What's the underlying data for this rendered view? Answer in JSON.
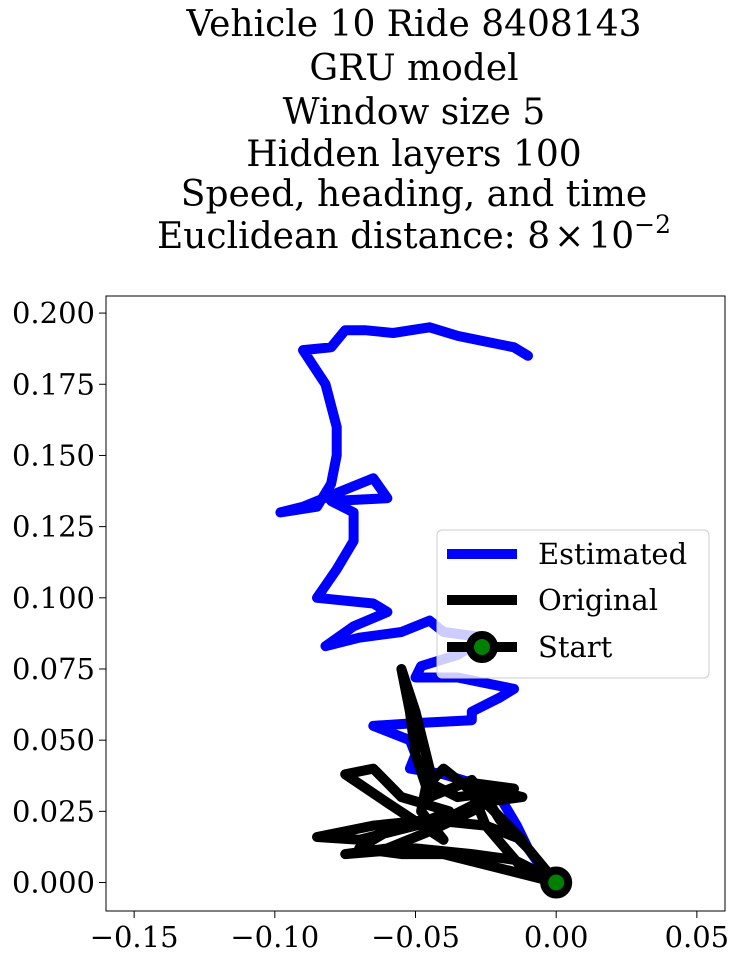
{
  "chart_data": {
    "type": "line",
    "title_lines": [
      "Vehicle 10 Ride 8408143",
      "GRU model",
      "Window size 5",
      "Hidden layers 100",
      "Speed, heading, and time"
    ],
    "title_last_prefix": "Euclidean distance: ",
    "title_last_math": {
      "mantissa": "8",
      "times": "×",
      "base": "10",
      "exponent": "−2"
    },
    "xlim": [
      -0.16,
      0.06
    ],
    "ylim": [
      -0.01,
      0.206
    ],
    "x_ticks": [
      -0.15,
      -0.1,
      -0.05,
      0.0,
      0.05
    ],
    "x_tick_labels": [
      "−0.15",
      "−0.10",
      "−0.05",
      "0.00",
      "0.05"
    ],
    "y_ticks": [
      0.0,
      0.025,
      0.05,
      0.075,
      0.1,
      0.125,
      0.15,
      0.175,
      0.2
    ],
    "y_tick_labels": [
      "0.000",
      "0.025",
      "0.050",
      "0.075",
      "0.100",
      "0.125",
      "0.150",
      "0.175",
      "0.200"
    ],
    "legend_position": "center-right",
    "series": [
      {
        "name": "Estimated",
        "color": "#0000ff",
        "points": [
          [
            0.0,
            0.0
          ],
          [
            -0.005,
            0.005
          ],
          [
            -0.01,
            0.012
          ],
          [
            -0.014,
            0.02
          ],
          [
            -0.02,
            0.03
          ],
          [
            -0.03,
            0.035
          ],
          [
            -0.04,
            0.038
          ],
          [
            -0.052,
            0.04
          ],
          [
            -0.05,
            0.045
          ],
          [
            -0.052,
            0.05
          ],
          [
            -0.065,
            0.055
          ],
          [
            -0.05,
            0.056
          ],
          [
            -0.03,
            0.057
          ],
          [
            -0.03,
            0.06
          ],
          [
            -0.02,
            0.065
          ],
          [
            -0.015,
            0.068
          ],
          [
            -0.035,
            0.072
          ],
          [
            -0.05,
            0.072
          ],
          [
            -0.048,
            0.076
          ],
          [
            -0.035,
            0.08
          ],
          [
            -0.025,
            0.086
          ],
          [
            -0.04,
            0.088
          ],
          [
            -0.045,
            0.092
          ],
          [
            -0.055,
            0.088
          ],
          [
            -0.07,
            0.086
          ],
          [
            -0.082,
            0.083
          ],
          [
            -0.072,
            0.09
          ],
          [
            -0.06,
            0.095
          ],
          [
            -0.065,
            0.098
          ],
          [
            -0.075,
            0.099
          ],
          [
            -0.085,
            0.1
          ],
          [
            -0.078,
            0.11
          ],
          [
            -0.072,
            0.12
          ],
          [
            -0.072,
            0.13
          ],
          [
            -0.08,
            0.134
          ],
          [
            -0.06,
            0.135
          ],
          [
            -0.065,
            0.142
          ],
          [
            -0.075,
            0.138
          ],
          [
            -0.09,
            0.132
          ],
          [
            -0.098,
            0.13
          ],
          [
            -0.085,
            0.132
          ],
          [
            -0.08,
            0.14
          ],
          [
            -0.078,
            0.15
          ],
          [
            -0.078,
            0.16
          ],
          [
            -0.082,
            0.175
          ],
          [
            -0.09,
            0.187
          ],
          [
            -0.08,
            0.188
          ],
          [
            -0.075,
            0.194
          ],
          [
            -0.068,
            0.194
          ],
          [
            -0.058,
            0.193
          ],
          [
            -0.045,
            0.195
          ],
          [
            -0.035,
            0.192
          ],
          [
            -0.025,
            0.19
          ],
          [
            -0.015,
            0.188
          ],
          [
            -0.01,
            0.185
          ]
        ]
      },
      {
        "name": "Original",
        "color": "#000000",
        "points": [
          [
            0.0,
            0.0
          ],
          [
            -0.01,
            0.012
          ],
          [
            -0.02,
            0.022
          ],
          [
            -0.025,
            0.03
          ],
          [
            -0.03,
            0.036
          ],
          [
            -0.045,
            0.03
          ],
          [
            -0.05,
            0.045
          ],
          [
            -0.052,
            0.06
          ],
          [
            -0.055,
            0.075
          ],
          [
            -0.05,
            0.06
          ],
          [
            -0.045,
            0.04
          ],
          [
            -0.048,
            0.025
          ],
          [
            -0.04,
            0.015
          ],
          [
            -0.06,
            0.028
          ],
          [
            -0.075,
            0.038
          ],
          [
            -0.065,
            0.04
          ],
          [
            -0.055,
            0.03
          ],
          [
            -0.038,
            0.025
          ],
          [
            -0.05,
            0.02
          ],
          [
            -0.07,
            0.015
          ],
          [
            -0.085,
            0.016
          ],
          [
            -0.065,
            0.02
          ],
          [
            -0.045,
            0.022
          ],
          [
            -0.025,
            0.02
          ],
          [
            -0.012,
            0.015
          ],
          [
            -0.025,
            0.028
          ],
          [
            -0.03,
            0.035
          ],
          [
            -0.015,
            0.033
          ],
          [
            -0.03,
            0.025
          ],
          [
            -0.045,
            0.018
          ],
          [
            -0.06,
            0.012
          ],
          [
            -0.075,
            0.01
          ],
          [
            -0.05,
            0.012
          ],
          [
            -0.03,
            0.01
          ],
          [
            -0.015,
            0.008
          ],
          [
            -0.005,
            0.003
          ],
          [
            0.0,
            0.0
          ],
          [
            -0.02,
            0.005
          ],
          [
            -0.04,
            0.01
          ],
          [
            -0.055,
            0.01
          ],
          [
            -0.07,
            0.012
          ],
          [
            -0.06,
            0.018
          ],
          [
            -0.04,
            0.022
          ],
          [
            -0.028,
            0.028
          ],
          [
            -0.012,
            0.03
          ],
          [
            -0.02,
            0.032
          ],
          [
            -0.035,
            0.03
          ],
          [
            -0.045,
            0.035
          ],
          [
            -0.04,
            0.04
          ],
          [
            -0.03,
            0.032
          ],
          [
            -0.025,
            0.02
          ],
          [
            -0.012,
            0.005
          ],
          [
            0.0,
            0.0
          ]
        ]
      }
    ],
    "start_marker": {
      "name": "Start",
      "x": 0.0,
      "y": 0.0,
      "fill": "#008000",
      "edge": "#000000"
    }
  }
}
